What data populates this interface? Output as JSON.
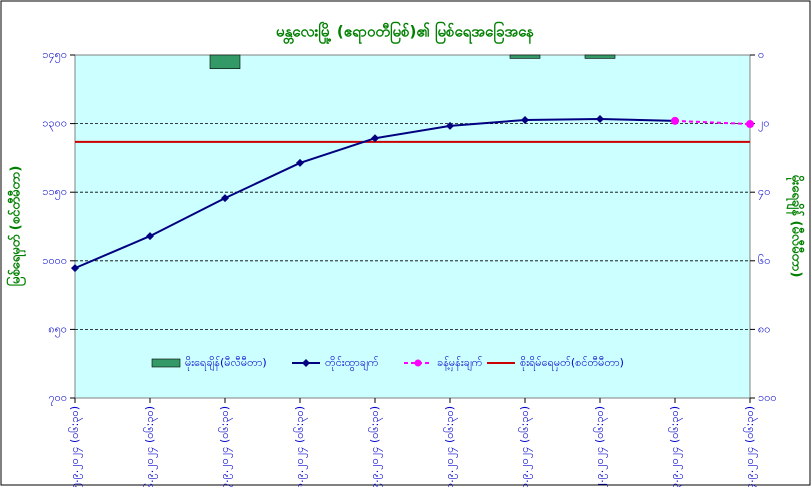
{
  "chart_data": {
    "type": "combo",
    "title": "မန္တလေးမြို့ (ဧရာဝတီမြစ်)၏ မြစ်ရေအခြေအနေ",
    "y_label": "မြစ်ရေမှတ် (စင်တီမီတာ)",
    "y2_label": "မိုးရေချိန် (မီလီမီတာ)",
    "categories": [
      "၅.၉.၂၀၂၄ (၀၆:၃၀)",
      "၆.၉.၂၀၂၄ (၀၆:၃၀)",
      "၇.၉.၂၀၂၄ (၀၆:၃၀)",
      "၈.၉.၂၀၂၄ (၀၆:၃၀)",
      "၉.၉.၂၀၂၄ (၀၆:၃၀)",
      "၁၀.၉.၂၀၂၄ (၀၆:၃၀)",
      "၁၁.၉.၂၀၂၄ (၀၆:၃၀)",
      "၁၂.၉.၂၀၂၄ (၀၆:၃၀)",
      "၁၃.၉.၂၀၂၄ (၀၆:၃၀)",
      "၁၄.၉.၂၀၂၄ (၀၆:၃၀)"
    ],
    "ylim": [
      700,
      1450
    ],
    "yticks": [
      {
        "value": 700,
        "label": "၇၀၀"
      },
      {
        "value": 850,
        "label": "၈၅၀"
      },
      {
        "value": 1000,
        "label": "၁၀၀၀"
      },
      {
        "value": 1150,
        "label": "၁၁၅၀"
      },
      {
        "value": 1300,
        "label": "၁၃၀၀"
      },
      {
        "value": 1450,
        "label": "၁၄၅၀"
      }
    ],
    "y2lim": [
      100,
      0
    ],
    "y2ticks": [
      {
        "value": 0,
        "label": "၀"
      },
      {
        "value": 20,
        "label": "၂၀"
      },
      {
        "value": 40,
        "label": "၄၀"
      },
      {
        "value": 60,
        "label": "၆၀"
      },
      {
        "value": 80,
        "label": "၈၀"
      },
      {
        "value": 100,
        "label": "၁၀၀"
      }
    ],
    "grid": true,
    "series": [
      {
        "name": "မိုးရေချိန်(မီလီမီတာ)",
        "kind": "bar",
        "axis": "y2",
        "color": "#339966",
        "values": [
          0,
          0,
          4,
          0,
          0,
          0,
          1,
          1,
          0,
          0
        ]
      },
      {
        "name": "တိုင်းထွာချက်",
        "kind": "line",
        "color": "#000080",
        "values": [
          984,
          1054,
          1137,
          1214,
          1268,
          1295,
          1308,
          1310,
          1306,
          null
        ]
      },
      {
        "name": "ခန့်မှန်းချက်",
        "kind": "dashed",
        "color": "#ff00ff",
        "values": [
          null,
          null,
          null,
          null,
          null,
          null,
          null,
          null,
          1306,
          1299
        ]
      }
    ],
    "threshold": {
      "name": "စိုးရိမ်ရေမှတ်(စင်တီမီတာ)",
      "value": 1260,
      "color": "#cc0000"
    }
  }
}
